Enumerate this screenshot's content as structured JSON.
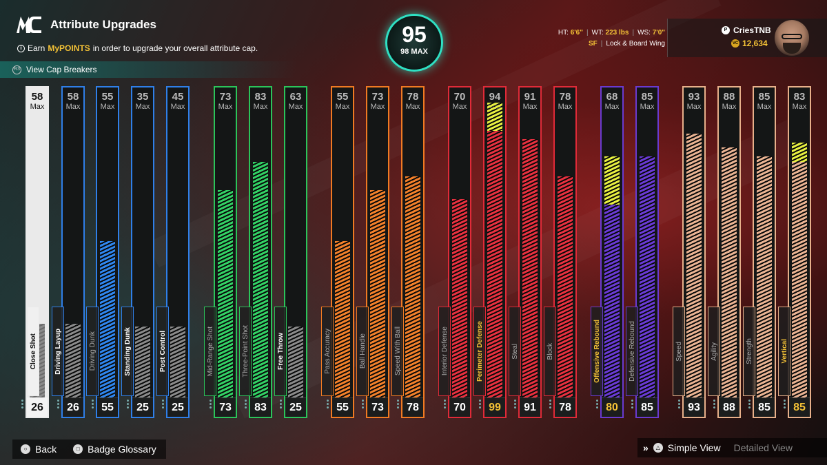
{
  "header": {
    "logo": "MC",
    "title": "Attribute Upgrades",
    "info_prefix": "Earn ",
    "info_highlight": "MyPOINTS",
    "info_suffix": " in order to upgrade your overall attribute cap.",
    "cap_breakers": "View Cap Breakers"
  },
  "overall": {
    "value": "95",
    "max_label": "98 MAX",
    "ring_color": "#2fe0c3"
  },
  "player": {
    "ht_label": "HT:",
    "ht": "6'6\"",
    "wt_label": "WT:",
    "wt": "223 lbs",
    "ws_label": "WS:",
    "ws": "7'0\"",
    "position": "SF",
    "archetype": "Lock & Board Wing",
    "gamertag": "CriesTNB",
    "vc": "12,634"
  },
  "max_label": "Max",
  "attributes": [
    {
      "name": "Close Shot",
      "current": 26,
      "max": 58,
      "color": "#eaeaea",
      "fill": "#8a8a8a",
      "selected": true
    },
    {
      "name": "Driving Layup",
      "current": 26,
      "max": 58,
      "color": "#2f7fe8",
      "fill": "#8a8a8a"
    },
    {
      "name": "Driving Dunk",
      "current": 55,
      "max": 55,
      "color": "#2f7fe8",
      "fill": "#2f86ef"
    },
    {
      "name": "Standing Dunk",
      "current": 25,
      "max": 35,
      "color": "#2f7fe8",
      "fill": "#8a8a8a"
    },
    {
      "name": "Post Control",
      "current": 25,
      "max": 45,
      "color": "#2f7fe8",
      "fill": "#8a8a8a"
    },
    {
      "name": "Mid-Range Shot",
      "current": 73,
      "max": 73,
      "color": "#2bc45a",
      "fill": "#32d265"
    },
    {
      "name": "Three-Point Shot",
      "current": 83,
      "max": 83,
      "color": "#2bc45a",
      "fill": "#32d265"
    },
    {
      "name": "Free Throw",
      "current": 25,
      "max": 63,
      "color": "#2bc45a",
      "fill": "#8a8a8a"
    },
    {
      "name": "Pass Accuracy",
      "current": 55,
      "max": 55,
      "color": "#f07a22",
      "fill": "#f3802a"
    },
    {
      "name": "Ball Handle",
      "current": 73,
      "max": 73,
      "color": "#f07a22",
      "fill": "#f3802a"
    },
    {
      "name": "Speed With Ball",
      "current": 78,
      "max": 78,
      "color": "#f07a22",
      "fill": "#f3802a"
    },
    {
      "name": "Interior Defense",
      "current": 70,
      "max": 70,
      "color": "#e02a38",
      "fill": "#e8303f"
    },
    {
      "name": "Perimeter Defense",
      "current": 99,
      "max": 94,
      "color": "#e02a38",
      "fill": "#e8303f",
      "highlight": true
    },
    {
      "name": "Steal",
      "current": 91,
      "max": 91,
      "color": "#e02a38",
      "fill": "#e8303f"
    },
    {
      "name": "Block",
      "current": 78,
      "max": 78,
      "color": "#e02a38",
      "fill": "#e8303f"
    },
    {
      "name": "Offensive Rebound",
      "current": 80,
      "max": 68,
      "color": "#6a3ad0",
      "fill": "#6a3ad6",
      "highlight": true
    },
    {
      "name": "Defensive Rebound",
      "current": 85,
      "max": 85,
      "color": "#6a3ad0",
      "fill": "#6a3ad6"
    },
    {
      "name": "Speed",
      "current": 93,
      "max": 93,
      "color": "#e8b08a",
      "fill": "#eab392"
    },
    {
      "name": "Agility",
      "current": 88,
      "max": 88,
      "color": "#e8b08a",
      "fill": "#eab392"
    },
    {
      "name": "Strength",
      "current": 85,
      "max": 85,
      "color": "#e8b08a",
      "fill": "#eab392"
    },
    {
      "name": "Vertical",
      "current": 85,
      "max": 83,
      "color": "#e8b08a",
      "fill": "#eab392",
      "highlight": true
    }
  ],
  "footer": {
    "back": "Back",
    "glossary": "Badge Glossary",
    "simple_view": "Simple View",
    "detailed_view": "Detailed View"
  }
}
